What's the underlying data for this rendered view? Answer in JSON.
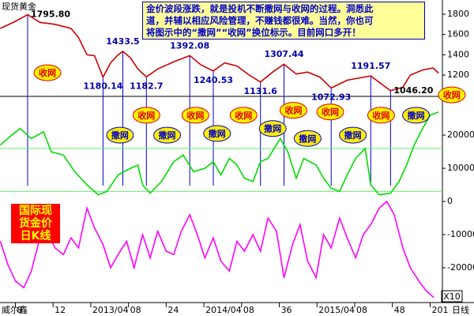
{
  "chart_data": [
    {
      "type": "line",
      "title": "现货黄金",
      "xlim": [
        6.37,
        53.3
      ],
      "ylim": [
        990,
        1940
      ],
      "yticks": [
        1200,
        1400,
        1600,
        1800
      ],
      "color": "#cc0000",
      "x": [
        6.4,
        8.0,
        9.3,
        10.6,
        12.2,
        13.9,
        14.7,
        15.6,
        16.4,
        17.3,
        18.1,
        18.9,
        19.4,
        20.2,
        21.0,
        21.9,
        23.1,
        24.8,
        26.5,
        27.7,
        29.0,
        30.2,
        31.5,
        32.8,
        34.0,
        35.3,
        36.5,
        37.8,
        39.0,
        40.3,
        41.5,
        43.2,
        45.7,
        47.0,
        47.8,
        49.1,
        49.9,
        51.2,
        52.3,
        52.9
      ],
      "values": [
        1660,
        1730,
        1795.8,
        1720,
        1700,
        1660,
        1570,
        1400,
        1390,
        1180.14,
        1320,
        1400,
        1433.5,
        1370,
        1260,
        1182.7,
        1260,
        1330,
        1392.08,
        1300,
        1240.53,
        1320,
        1290,
        1200,
        1131.6,
        1230,
        1307.44,
        1210,
        1230,
        1180,
        1072.93,
        1150,
        1191.57,
        1100,
        1046.2,
        1080,
        1200,
        1250,
        1270,
        1220
      ],
      "annotations": [
        {
          "x": 9.3,
          "value": 1795.8,
          "label": "1795.80",
          "position": "right"
        },
        {
          "x": 17.3,
          "value": 1180.14,
          "label": "1180.14",
          "position": "below"
        },
        {
          "x": 19.4,
          "value": 1433.5,
          "label": "1433.5",
          "position": "above"
        },
        {
          "x": 21.9,
          "value": 1182.7,
          "label": "1182.7",
          "position": "below"
        },
        {
          "x": 26.5,
          "value": 1392.08,
          "label": "1392.08",
          "position": "above"
        },
        {
          "x": 29.0,
          "value": 1240.53,
          "label": "1240.53",
          "position": "below"
        },
        {
          "x": 34.0,
          "value": 1131.6,
          "label": "1131.6",
          "position": "below"
        },
        {
          "x": 36.5,
          "value": 1307.44,
          "label": "1307.44",
          "position": "above"
        },
        {
          "x": 41.5,
          "value": 1072.93,
          "label": "1072.93",
          "position": "below"
        },
        {
          "x": 45.7,
          "value": 1191.57,
          "label": "1191.57",
          "position": "above"
        },
        {
          "x": 47.8,
          "value": 1046.2,
          "label": "1046.20",
          "position": "right"
        }
      ],
      "signals": [
        {
          "x": 11.4,
          "y": 1223,
          "label": "收网",
          "color": "#e00000"
        },
        {
          "x": 54.3,
          "y": 1005,
          "label": "收网",
          "color": "#e00000"
        }
      ]
    },
    {
      "type": "line",
      "xlim": [
        6.37,
        53.3
      ],
      "ylim": [
        -30500,
        31700
      ],
      "yticks": [
        -20000,
        -10000,
        0,
        10000,
        20000
      ],
      "hlines": [
        16000,
        3000
      ],
      "hline_color": "#66ee66",
      "xticks": [
        8,
        12,
        {
          "value": 16,
          "label": "2013/04"
        },
        {
          "value": 20,
          "label": "08"
        },
        24,
        {
          "value": 28,
          "label": "2014/04"
        },
        {
          "value": 32,
          "label": "08"
        },
        36,
        {
          "value": 40,
          "label": "2015/04"
        },
        {
          "value": 44,
          "label": "08"
        },
        48,
        {
          "value": 52,
          "label": "201"
        }
      ],
      "x_label": "日线",
      "scale_note": "X10",
      "series": [
        {
          "color": "#00dd00",
          "x": [
            6.4,
            7.6,
            8.5,
            9.7,
            11.0,
            11.8,
            13.1,
            14.3,
            15.6,
            16.8,
            17.7,
            18.9,
            20.2,
            21.0,
            21.5,
            22.3,
            23.5,
            24.8,
            25.8,
            26.9,
            28.1,
            29.0,
            29.8,
            30.7,
            31.5,
            32.3,
            33.2,
            34.0,
            34.8,
            36.1,
            36.9,
            37.8,
            38.6,
            39.9,
            40.7,
            41.5,
            42.4,
            43.2,
            44.1,
            45.1,
            45.7,
            46.6,
            47.8,
            48.7,
            49.5,
            50.3,
            51.2,
            52.0,
            52.9
          ],
          "values": [
            17000,
            20000,
            22000,
            19000,
            21000,
            15000,
            14000,
            9000,
            5000,
            2000,
            3000,
            8000,
            10000,
            11000,
            5000,
            2500,
            6000,
            12000,
            14000,
            9000,
            10000,
            12000,
            8000,
            13000,
            11000,
            7000,
            6000,
            12000,
            13000,
            19000,
            15000,
            7000,
            13000,
            11000,
            7000,
            4000,
            3000,
            8000,
            13000,
            16000,
            5000,
            2000,
            2500,
            6000,
            11000,
            17000,
            22000,
            26000,
            27000
          ]
        },
        {
          "color": "#ff00ff",
          "x": [
            6.4,
            7.2,
            8.0,
            8.9,
            9.7,
            10.6,
            11.4,
            12.2,
            13.1,
            13.9,
            14.7,
            15.6,
            16.4,
            17.3,
            18.1,
            18.9,
            19.8,
            20.6,
            21.5,
            22.3,
            23.1,
            24.0,
            24.8,
            25.6,
            26.5,
            27.3,
            28.1,
            29.0,
            29.8,
            30.7,
            31.5,
            32.3,
            33.2,
            34.0,
            34.8,
            35.7,
            36.5,
            37.4,
            38.2,
            39.0,
            39.9,
            40.7,
            41.5,
            42.4,
            43.2,
            44.1,
            44.9,
            45.7,
            46.6,
            47.4,
            48.2,
            49.1,
            49.9,
            50.8,
            51.6,
            52.4
          ],
          "values": [
            -12000,
            -19000,
            -24000,
            -26000,
            -21000,
            -11000,
            -9000,
            -14000,
            -16000,
            -11000,
            -14000,
            -2000,
            -8000,
            -13000,
            -20000,
            -16000,
            -12000,
            -20000,
            -10000,
            -17000,
            -9000,
            -15000,
            -16000,
            -9000,
            -4000,
            -10000,
            -17000,
            -11000,
            -18000,
            -21000,
            -12000,
            -15000,
            -10000,
            -15000,
            -5000,
            -9000,
            -23000,
            -13000,
            -7000,
            -18000,
            -23000,
            -10000,
            -14000,
            -5000,
            -11000,
            -17000,
            -10000,
            -7000,
            -2000,
            0,
            -4000,
            -14000,
            -20000,
            -24000,
            -27000,
            -29000
          ]
        }
      ],
      "signals": [
        {
          "x": 19.1,
          "y": 20000,
          "label": "撒网",
          "color": "#0000cc"
        },
        {
          "x": 21.9,
          "y": 26000,
          "label": "收网",
          "color": "#e00000"
        },
        {
          "x": 24.1,
          "y": 20000,
          "label": "撒网",
          "color": "#0000cc"
        },
        {
          "x": 27.1,
          "y": 26000,
          "label": "收网",
          "color": "#e00000"
        },
        {
          "x": 29.4,
          "y": 20500,
          "label": "撒网",
          "color": "#0000cc"
        },
        {
          "x": 32.2,
          "y": 26000,
          "label": "收网",
          "color": "#e00000"
        },
        {
          "x": 35.3,
          "y": 22000,
          "label": "撒网",
          "color": "#0000cc"
        },
        {
          "x": 37.5,
          "y": 27500,
          "label": "收网",
          "color": "#e00000"
        },
        {
          "x": 39.0,
          "y": 19000,
          "label": "撒网",
          "color": "#0000cc"
        },
        {
          "x": 41.4,
          "y": 27000,
          "label": "收网",
          "color": "#e00000"
        },
        {
          "x": 43.8,
          "y": 20000,
          "label": "撒网",
          "color": "#0000cc"
        },
        {
          "x": 46.8,
          "y": 26000,
          "label": "收网",
          "color": "#e00000"
        },
        {
          "x": 50.5,
          "y": 26000,
          "label": "撒网",
          "color": "#0000cc"
        }
      ]
    }
  ],
  "text_box": {
    "lines": [
      "金价波段涨跌，就是投机不断撒网与收网的过程。洞悉此",
      "道，并辅以相应风险管理，不赚钱都很难。当然，你也可",
      "将图示中的“撒网”“收网”换位标示。目前网口多开！"
    ]
  },
  "badge": {
    "lines": [
      "国际现",
      "货金价",
      "日K线"
    ]
  },
  "source": "威尔鑫"
}
